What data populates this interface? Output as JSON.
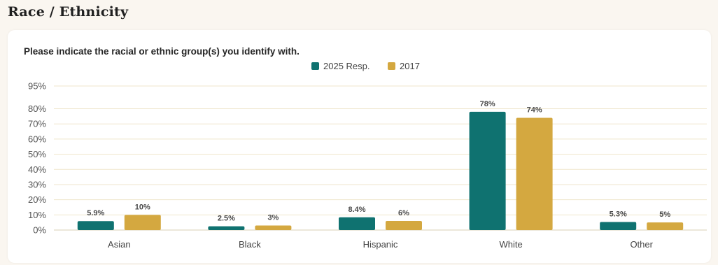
{
  "page": {
    "section_title": "Race / Ethnicity",
    "question": "Please indicate the racial or ethnic group(s) you identify with."
  },
  "colors": {
    "series_1": "#0f7270",
    "series_2": "#d4a840",
    "grid": "#efe6cc",
    "background": "#faf6f0"
  },
  "chart_data": {
    "type": "bar",
    "title": "",
    "xlabel": "",
    "ylabel": "",
    "categories": [
      "Asian",
      "Black",
      "Hispanic",
      "White",
      "Other"
    ],
    "series": [
      {
        "name": "2025 Resp.",
        "values": [
          5.9,
          2.5,
          8.4,
          78,
          5.3
        ],
        "labels": [
          "5.9%",
          "2.5%",
          "8.4%",
          "78%",
          "5.3%"
        ]
      },
      {
        "name": "2017",
        "values": [
          10,
          3,
          6,
          74,
          5
        ],
        "labels": [
          "10%",
          "3%",
          "6%",
          "74%",
          "5%"
        ]
      }
    ],
    "yticks": [
      0,
      10,
      20,
      30,
      40,
      50,
      60,
      70,
      80,
      95
    ],
    "ytick_labels": [
      "0%",
      "10%",
      "20%",
      "30%",
      "40%",
      "50%",
      "60%",
      "70%",
      "80%",
      "95%"
    ],
    "ylim": [
      0,
      95
    ],
    "grid": true,
    "legend_position": "top-center"
  }
}
